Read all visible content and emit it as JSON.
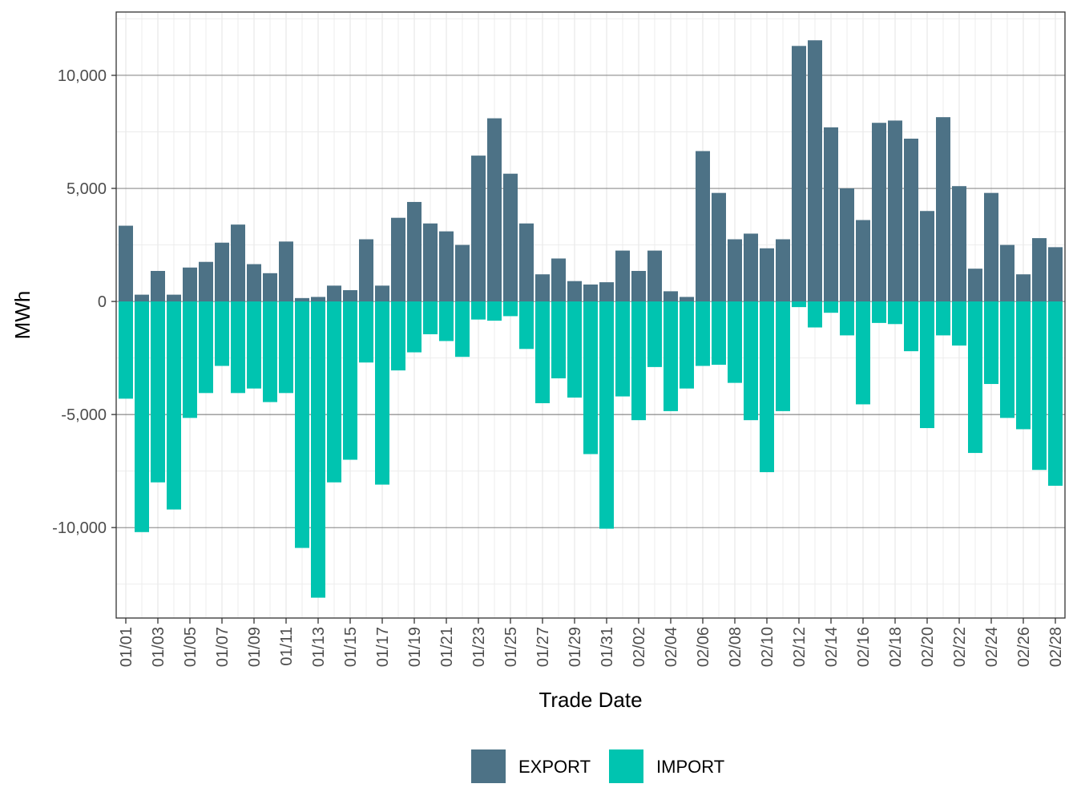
{
  "chart_data": {
    "type": "bar",
    "stacked": "diverging",
    "xlabel": "Trade Date",
    "ylabel": "MWh",
    "ylim": [
      -14000,
      12800
    ],
    "yticks": [
      -10000,
      -5000,
      0,
      5000,
      10000
    ],
    "ytick_labels": [
      "-10,000",
      "-5,000",
      "0",
      "5,000",
      "10,000"
    ],
    "xtick_labels": [
      "01/01",
      "01/03",
      "01/05",
      "01/07",
      "01/09",
      "01/11",
      "01/13",
      "01/15",
      "01/17",
      "01/19",
      "01/21",
      "01/23",
      "01/25",
      "01/27",
      "01/29",
      "01/31",
      "02/02",
      "02/04",
      "02/06",
      "02/08",
      "02/10",
      "02/12",
      "02/14",
      "02/16",
      "02/18",
      "02/20",
      "02/22",
      "02/24",
      "02/26",
      "02/28"
    ],
    "legend_position": "bottom",
    "grid": true,
    "categories": [
      "01/01",
      "01/02",
      "01/03",
      "01/04",
      "01/05",
      "01/06",
      "01/07",
      "01/08",
      "01/09",
      "01/10",
      "01/11",
      "01/12",
      "01/13",
      "01/14",
      "01/15",
      "01/16",
      "01/17",
      "01/18",
      "01/19",
      "01/20",
      "01/21",
      "01/22",
      "01/23",
      "01/24",
      "01/25",
      "01/26",
      "01/27",
      "01/28",
      "01/29",
      "01/30",
      "01/31",
      "02/01",
      "02/02",
      "02/03",
      "02/04",
      "02/05",
      "02/06",
      "02/07",
      "02/08",
      "02/09",
      "02/10",
      "02/11",
      "02/12",
      "02/13",
      "02/14",
      "02/15",
      "02/16",
      "02/17",
      "02/18",
      "02/19",
      "02/20",
      "02/21",
      "02/22",
      "02/23",
      "02/24",
      "02/25",
      "02/26",
      "02/27",
      "02/28"
    ],
    "series": [
      {
        "name": "EXPORT",
        "color": "#4d7286",
        "values": [
          3350,
          300,
          1350,
          300,
          1500,
          1750,
          2600,
          3400,
          1650,
          1250,
          2650,
          150,
          200,
          700,
          500,
          2750,
          700,
          3700,
          4400,
          3450,
          3100,
          2500,
          6450,
          8100,
          5650,
          3450,
          1200,
          1900,
          900,
          750,
          850,
          2250,
          1350,
          2250,
          450,
          200,
          6650,
          4800,
          2750,
          3000,
          2350,
          2750,
          11300,
          11550,
          7700,
          5000,
          3600,
          7900,
          8000,
          7200,
          4000,
          8150,
          5100,
          1450,
          4800,
          2500,
          1200,
          2800,
          2400
        ]
      },
      {
        "name": "IMPORT",
        "color": "#00c4b0",
        "values": [
          -4300,
          -10200,
          -8000,
          -9200,
          -5150,
          -4050,
          -2850,
          -4050,
          -3850,
          -4450,
          -4050,
          -10900,
          -13100,
          -8000,
          -7000,
          -2700,
          -8100,
          -3050,
          -2250,
          -1450,
          -1750,
          -2450,
          -800,
          -850,
          -650,
          -2100,
          -4500,
          -3400,
          -4250,
          -6750,
          -10050,
          -4200,
          -5250,
          -2900,
          -4850,
          -3850,
          -2850,
          -2800,
          -3600,
          -5250,
          -7550,
          -4850,
          -250,
          -1150,
          -500,
          -1500,
          -4550,
          -950,
          -1000,
          -2200,
          -5600,
          -1500,
          -1950,
          -6700,
          -3650,
          -5150,
          -5650,
          -7450,
          -8150
        ]
      }
    ]
  }
}
